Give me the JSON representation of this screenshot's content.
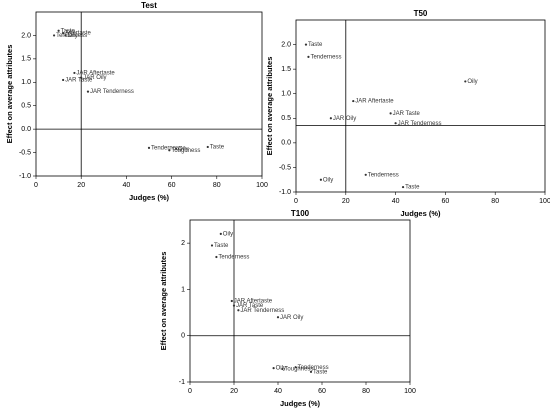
{
  "chart_data": [
    {
      "type": "scatter",
      "title": "Test",
      "x_label": "Judges (%)",
      "y_label": "Effect on average attributes",
      "labels": [
        "Taste",
        "Aftertaste",
        "Tenderness",
        "Oily",
        "JAR Aftertaste",
        "JAR Oily",
        "JAR Taste",
        "JAR Tenderness",
        "Tenderness",
        "Toughness",
        "Oily",
        "Taste"
      ],
      "x": [
        10,
        12,
        8,
        13,
        17,
        20,
        12,
        23,
        50,
        59,
        62,
        76
      ],
      "y": [
        2.1,
        2.05,
        2.0,
        2.0,
        1.2,
        1.1,
        1.05,
        0.8,
        -0.4,
        -0.45,
        -0.42,
        -0.38
      ],
      "xlim": [
        0,
        100
      ],
      "xticks": [
        0,
        20,
        40,
        60,
        80,
        100
      ],
      "ylim": [
        -1,
        2.5
      ],
      "yticks": [
        {
          "value": -1,
          "label": "-1.0"
        },
        -0.5,
        {
          "value": 0,
          "label": "0.0"
        },
        0.5,
        {
          "value": 1,
          "label": "1.0"
        },
        1.5,
        {
          "value": 2,
          "label": "2.0"
        }
      ],
      "ref_x": 20,
      "ref_y": 0,
      "color": "#333333"
    },
    {
      "type": "scatter",
      "title": "T50",
      "x_label": "Judges (%)",
      "y_label": "Effect on average attributes",
      "labels": [
        "Taste",
        "Tenderness",
        "Oily",
        "JAR Aftertaste",
        "JAR Taste",
        "JAR Oily",
        "JAR Tenderness",
        "Oily",
        "Tenderness",
        "Taste"
      ],
      "x": [
        4,
        5,
        68,
        23,
        38,
        14,
        40,
        10,
        28,
        43
      ],
      "y": [
        2.0,
        1.75,
        1.25,
        0.85,
        0.6,
        0.5,
        0.4,
        -0.75,
        -0.65,
        -0.9
      ],
      "xlim": [
        0,
        100
      ],
      "xticks": [
        0,
        20,
        40,
        60,
        80,
        100
      ],
      "ylim": [
        -1,
        2.5
      ],
      "yticks": [
        {
          "value": -1,
          "label": "-1.0"
        },
        -0.5,
        {
          "value": 0,
          "label": "0.0"
        },
        0.5,
        {
          "value": 1,
          "label": "1.0"
        },
        1.5,
        {
          "value": 2,
          "label": "2.0"
        }
      ],
      "ref_x": 20,
      "ref_y": 0.35,
      "color": "#333333"
    },
    {
      "type": "scatter",
      "title": "T100",
      "x_label": "Judges (%)",
      "y_label": "Effect on average attributes",
      "labels": [
        "Oily",
        "Taste",
        "Tenderness",
        "JAR Aftertaste",
        "JAR Taste",
        "JAR Tenderness",
        "JAR Oily",
        "Oily",
        "Toughness",
        "Tenderness",
        "Taste"
      ],
      "x": [
        14,
        10,
        12,
        19,
        20,
        22,
        40,
        38,
        42,
        48,
        55
      ],
      "y": [
        2.2,
        1.95,
        1.7,
        0.75,
        0.65,
        0.55,
        0.4,
        -0.7,
        -0.72,
        -0.68,
        -0.78
      ],
      "xlim": [
        0,
        100
      ],
      "xticks": [
        0,
        20,
        40,
        60,
        80,
        100
      ],
      "ylim": [
        -1,
        2.5
      ],
      "yticks": [
        -1,
        0,
        1,
        2
      ],
      "ref_x": 20,
      "ref_y": 0,
      "color": "#333333"
    }
  ]
}
